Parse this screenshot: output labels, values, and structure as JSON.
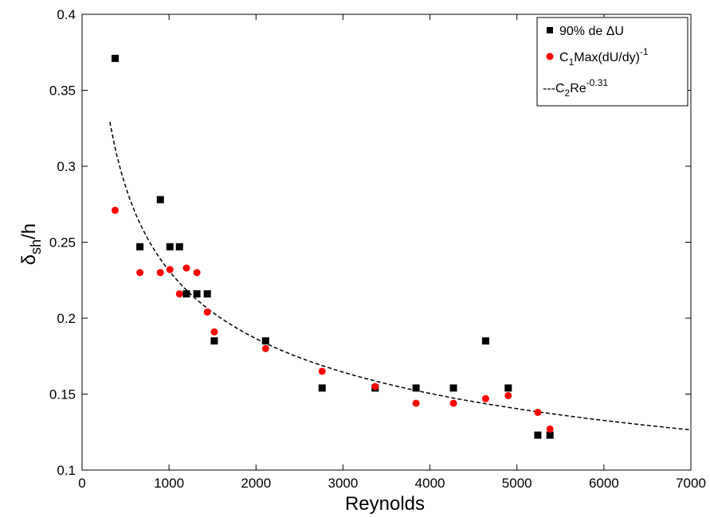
{
  "chart_data": {
    "type": "scatter",
    "xlabel": "Reynolds",
    "ylabel": {
      "main": "δ",
      "sub": "sh",
      "rest": "/h"
    },
    "xlim": [
      0,
      7000
    ],
    "ylim": [
      0.1,
      0.4
    ],
    "xticks": [
      0,
      1000,
      2000,
      3000,
      4000,
      5000,
      6000,
      7000
    ],
    "yticks": [
      0.1,
      0.15,
      0.2,
      0.25,
      0.3,
      0.35,
      0.4
    ],
    "xtick_labels": [
      "0",
      "1000",
      "2000",
      "3000",
      "4000",
      "5000",
      "6000",
      "7000"
    ],
    "ytick_labels": [
      "0.1",
      "0.15",
      "0.2",
      "0.25",
      "0.3",
      "0.35",
      "0.4"
    ],
    "grid": false,
    "legend_position": "top-right",
    "series": [
      {
        "name": "90% de ΔU",
        "marker": "square",
        "color": "#000000",
        "points": [
          [
            380,
            0.371
          ],
          [
            665,
            0.247
          ],
          [
            900,
            0.278
          ],
          [
            1010,
            0.247
          ],
          [
            1120,
            0.247
          ],
          [
            1200,
            0.216
          ],
          [
            1320,
            0.216
          ],
          [
            1440,
            0.216
          ],
          [
            1520,
            0.185
          ],
          [
            2110,
            0.185
          ],
          [
            2760,
            0.154
          ],
          [
            3370,
            0.154
          ],
          [
            3840,
            0.154
          ],
          [
            4270,
            0.154
          ],
          [
            4640,
            0.185
          ],
          [
            4900,
            0.154
          ],
          [
            5240,
            0.123
          ],
          [
            5380,
            0.123
          ]
        ]
      },
      {
        "name": "C1Max(dU/dy)-1",
        "marker": "circle",
        "color": "#ff0000",
        "points": [
          [
            380,
            0.271
          ],
          [
            665,
            0.23
          ],
          [
            900,
            0.23
          ],
          [
            1010,
            0.232
          ],
          [
            1120,
            0.216
          ],
          [
            1200,
            0.233
          ],
          [
            1320,
            0.23
          ],
          [
            1440,
            0.204
          ],
          [
            1520,
            0.191
          ],
          [
            2110,
            0.18
          ],
          [
            2760,
            0.165
          ],
          [
            3370,
            0.155
          ],
          [
            3840,
            0.144
          ],
          [
            4270,
            0.144
          ],
          [
            4640,
            0.147
          ],
          [
            4900,
            0.149
          ],
          [
            5240,
            0.138
          ],
          [
            5380,
            0.127
          ]
        ]
      },
      {
        "name": "C2Re-0.31",
        "marker": "dashed-line",
        "color": "#000000",
        "coefficient": 1.968,
        "exponent": -0.31,
        "x_range": [
          320,
          7000
        ]
      }
    ],
    "legend": [
      {
        "main": "90% de ΔU",
        "sub": "",
        "rest": "",
        "sup": ""
      },
      {
        "main": "C",
        "sub": "1",
        "rest": "Max(dU/dy)",
        "sup": "-1"
      },
      {
        "main": "---C",
        "sub": "2",
        "rest": "Re",
        "sup": "-0.31"
      }
    ]
  }
}
